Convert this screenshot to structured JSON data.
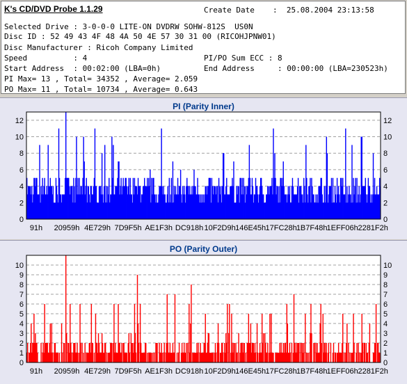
{
  "header": {
    "app_title": "K's CD/DVD Probe 1.1.29",
    "create_date_label": "Create Date",
    "create_date_value": ":  25.08.2004 23:13:58",
    "selected_drive": "Selected Drive : 3-0-0-0 LITE-ON DVDRW SOHW-812S  US0N",
    "disc_id": "Disc ID : 52 49 43 4F 48 4A 50 4E 57 30 31 00 (RICOHJPNW01)",
    "disc_manufacturer": "Disc Manufacturer : Ricoh Company Limited",
    "speed": "Speed          : 4",
    "pipo_sum": "PI/PO Sum ECC : 8",
    "start_address": "Start Address  : 00:02:00 (LBA=0h)",
    "end_address": "End Address     : 00:00:00 (LBA=230523h)",
    "pi_stats": "PI Max= 13 , Total= 34352 , Average= 2.059",
    "po_stats": "PO Max= 11 , Total= 10734 , Average= 0.643"
  },
  "chart_data": [
    {
      "type": "bar",
      "title": "PI (Parity Inner)",
      "color": "#0000ff",
      "ylim": [
        0,
        13
      ],
      "yticks": [
        0,
        2,
        4,
        6,
        8,
        10,
        12
      ],
      "grid": true,
      "xtick_labels": [
        "91h",
        "20959h",
        "4E729h",
        "7D9F5h",
        "AE1F3h",
        "DC918h",
        "10F2D9h",
        "146E45h",
        "17FC28h",
        "1B7F48h",
        "1EFF06h",
        "2281F2h"
      ],
      "max": 13,
      "average": 2.059,
      "total": 34352
    },
    {
      "type": "bar",
      "title": "PO (Parity Outer)",
      "color": "#ff0000",
      "ylim": [
        0,
        11
      ],
      "yticks": [
        0,
        1,
        2,
        3,
        4,
        5,
        6,
        7,
        8,
        9,
        10
      ],
      "grid": true,
      "xtick_labels": [
        "91h",
        "20959h",
        "4E729h",
        "7D9F5h",
        "AE1F3h",
        "DC918h",
        "10F2D9h",
        "146E45h",
        "17FC28h",
        "1B7F48h",
        "1EFF06h",
        "2281F2h"
      ],
      "max": 11,
      "average": 0.643,
      "total": 10734
    }
  ]
}
